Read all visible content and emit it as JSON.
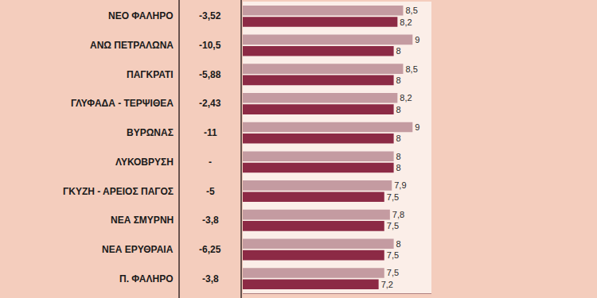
{
  "chart_data": {
    "type": "bar",
    "orientation": "horizontal",
    "categories": [
      "ΝΕΟ ΦΑΛΗΡΟ",
      "ΑΝΩ ΠΕΤΡΑΛΩΝΑ",
      "ΠΑΓΚΡΑΤΙ",
      "ΓΛΥΦΑΔΑ - ΤΕΡΨΙΘΕΑ",
      "ΒΥΡΩΝΑΣ",
      "ΛΥΚΟΒΡΥΣΗ",
      "ΓΚΥΖΗ - ΑΡΕΙΟΣ ΠΑΓΟΣ",
      "ΝΕΑ ΣΜΥΡΝΗ",
      "ΝΕΑ ΕΡΥΘΡΑΙΑ",
      "Π. ΦΑΛΗΡΟ"
    ],
    "changes": [
      -3.52,
      -10.5,
      -5.88,
      -2.43,
      -11,
      null,
      -5,
      -3.8,
      -6.25,
      -3.8
    ],
    "change_labels": [
      "-3,52",
      "-10,5",
      "-5,88",
      "-2,43",
      "-11",
      "-",
      "-5",
      "-3,8",
      "-6,25",
      "-3,8"
    ],
    "series": [
      {
        "color": "#c49ba1",
        "values": [
          8.5,
          9,
          8.5,
          8.2,
          9,
          8,
          7.9,
          7.8,
          8,
          7.5
        ],
        "value_labels": [
          "8,5",
          "9",
          "8,5",
          "8,2",
          "9",
          "8",
          "7,9",
          "7,8",
          "8",
          "7,5"
        ]
      },
      {
        "color": "#8c2a45",
        "values": [
          8.2,
          8,
          8,
          8,
          8,
          8,
          7.5,
          7.5,
          7.5,
          7.2
        ],
        "value_labels": [
          "8,2",
          "8",
          "8",
          "8",
          "8",
          "8",
          "7,5",
          "7,5",
          "7,5",
          "7,2"
        ]
      }
    ],
    "xlim": [
      0,
      10
    ],
    "xticks": [],
    "tick_labels": false,
    "data_labels": true,
    "grid": false
  }
}
